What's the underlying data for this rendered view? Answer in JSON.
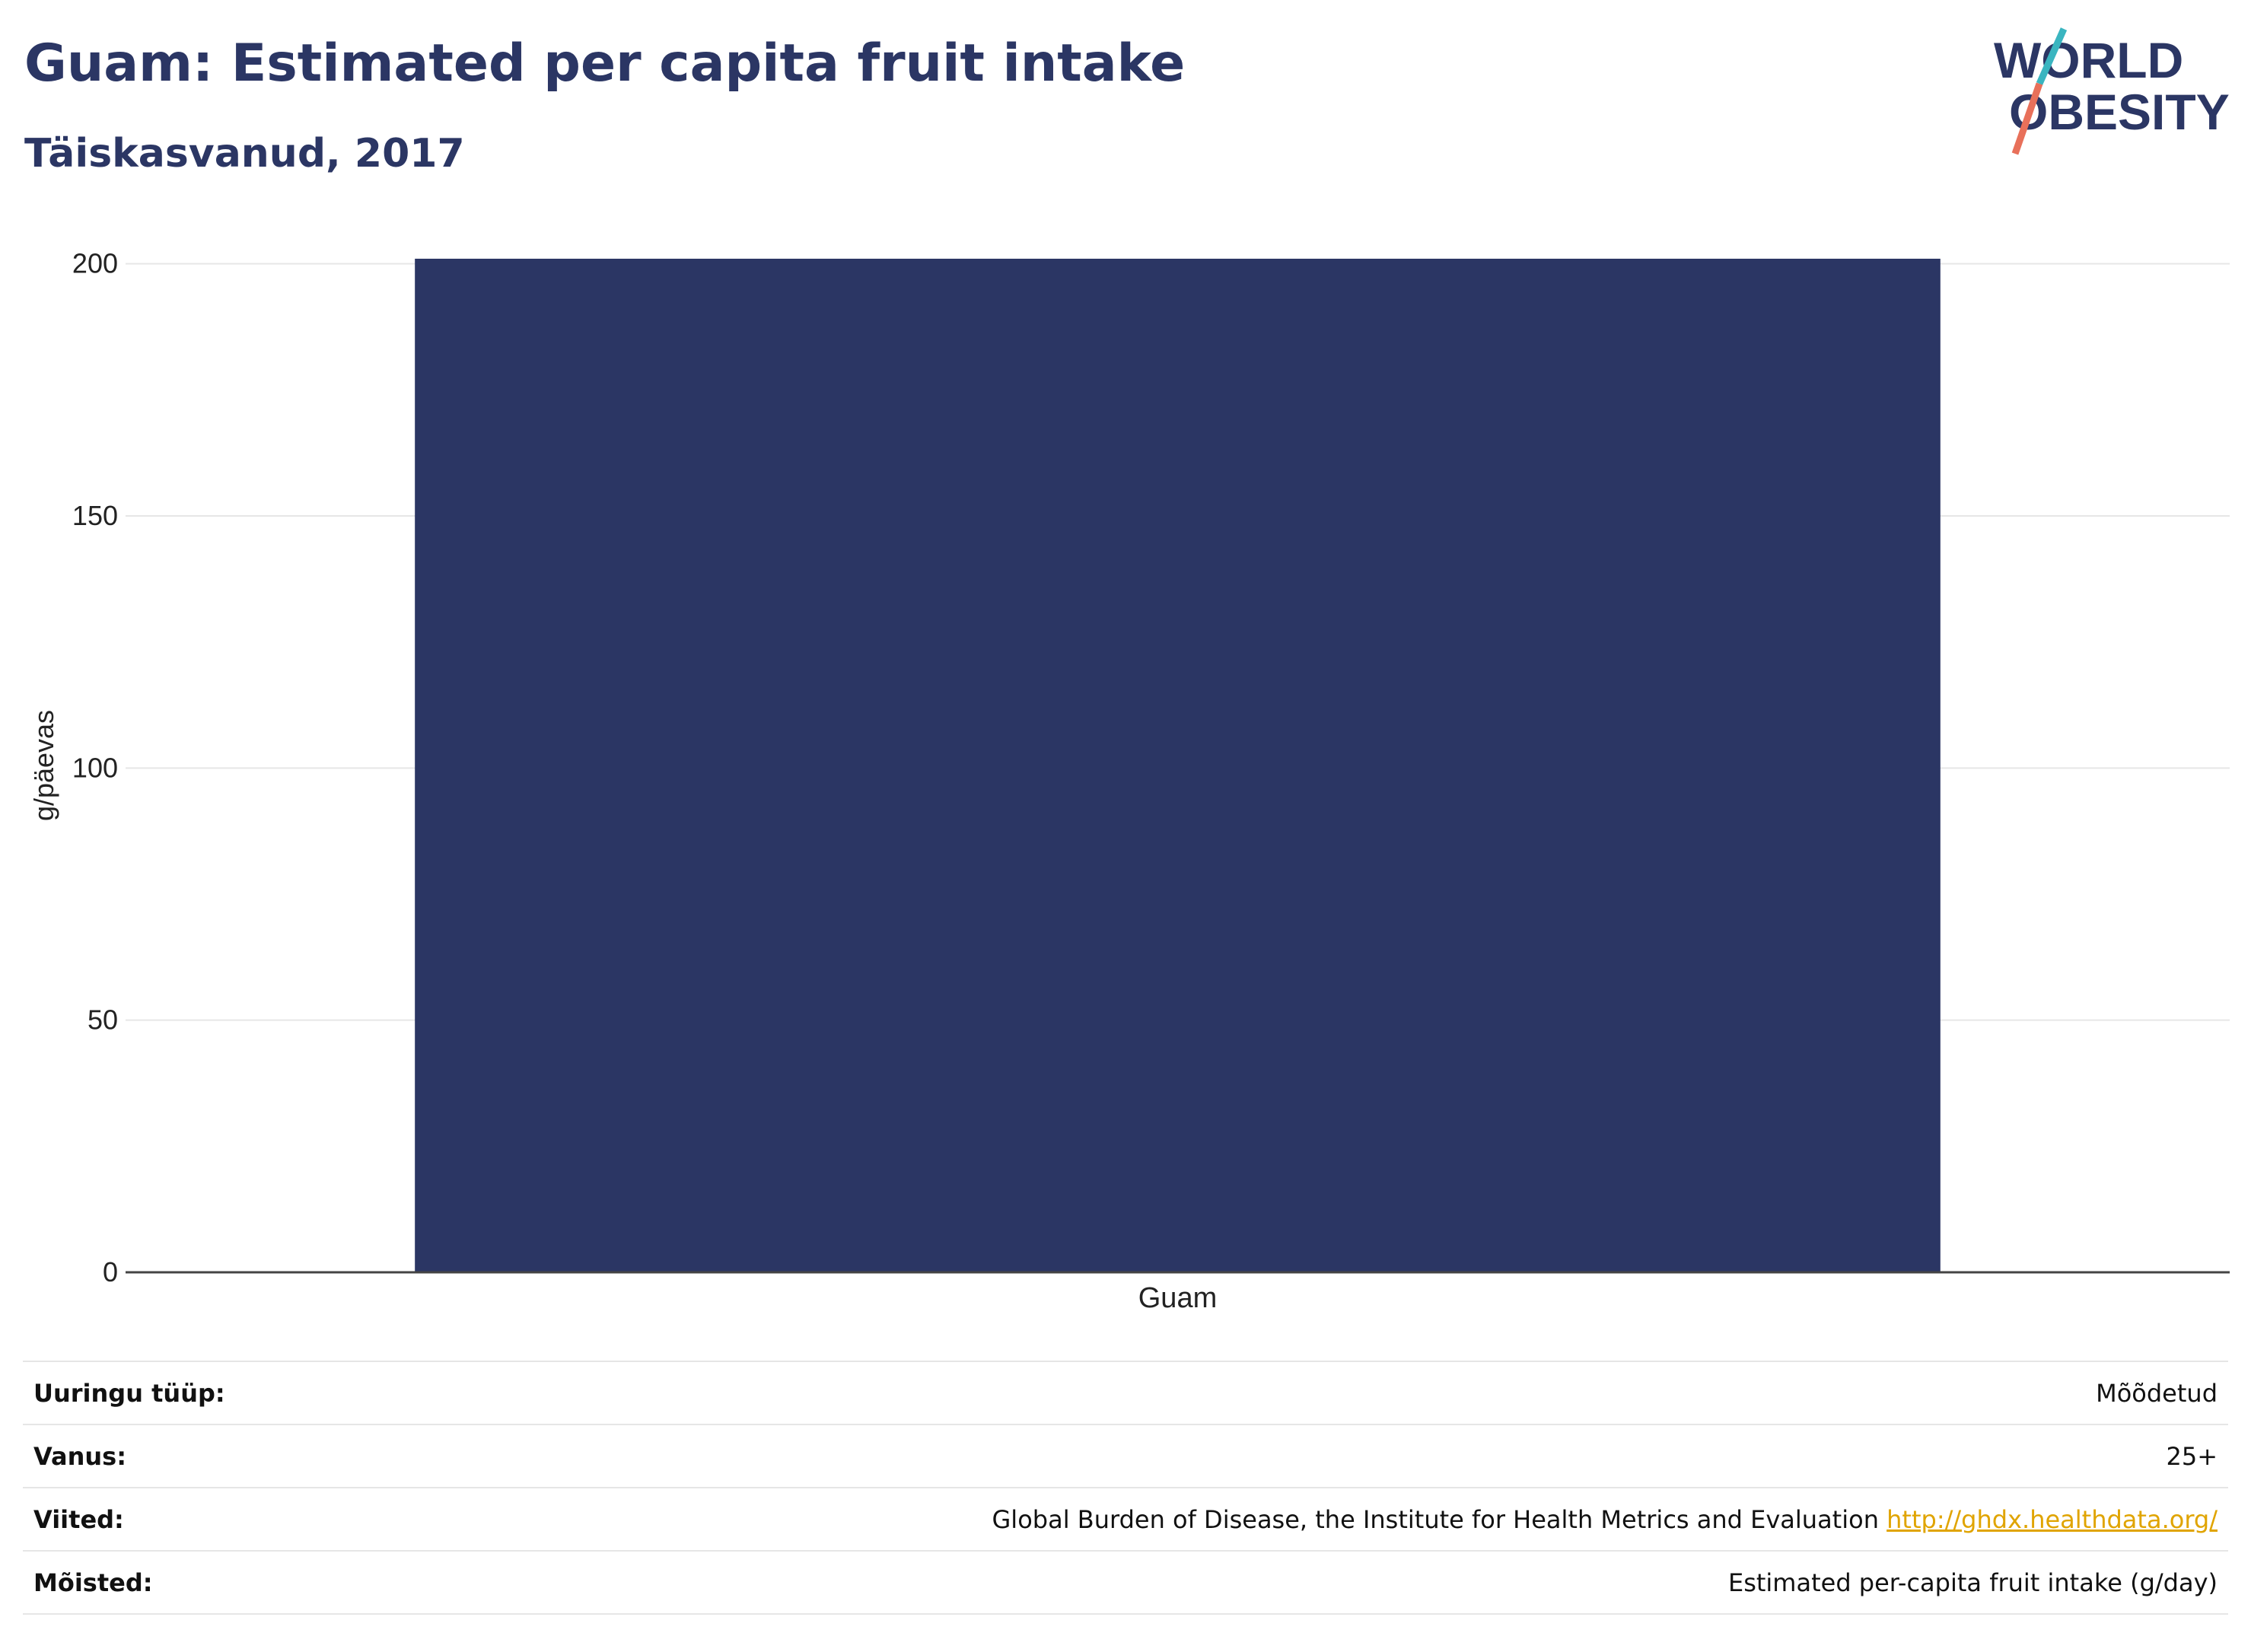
{
  "header": {
    "title": "Guam: Estimated per capita fruit intake",
    "subtitle": "Täiskasvanud, 2017"
  },
  "logo": {
    "line1": "WORLD",
    "line2": "OBESITY",
    "colors": {
      "text": "#2b3664",
      "slash_top": "#3ab5c0",
      "slash_bottom": "#e8705a"
    }
  },
  "chart_data": {
    "type": "bar",
    "categories": [
      "Guam"
    ],
    "values": [
      201
    ],
    "ylabel": "g/päevas",
    "ylim": [
      0,
      201
    ],
    "yticks": [
      0,
      50,
      100,
      150,
      200
    ],
    "grid": true,
    "bar_color": "#2b3664"
  },
  "info": [
    {
      "label": "Uuringu tüüp:",
      "value": "Mõõdetud"
    },
    {
      "label": "Vanus:",
      "value": "25+"
    },
    {
      "label": "Viited:",
      "value": "Global Burden of Disease, the Institute for Health Metrics and Evaluation",
      "link": "http://ghdx.healthdata.org/"
    },
    {
      "label": "Mõisted:",
      "value": "Estimated per-capita fruit intake (g/day)"
    }
  ]
}
